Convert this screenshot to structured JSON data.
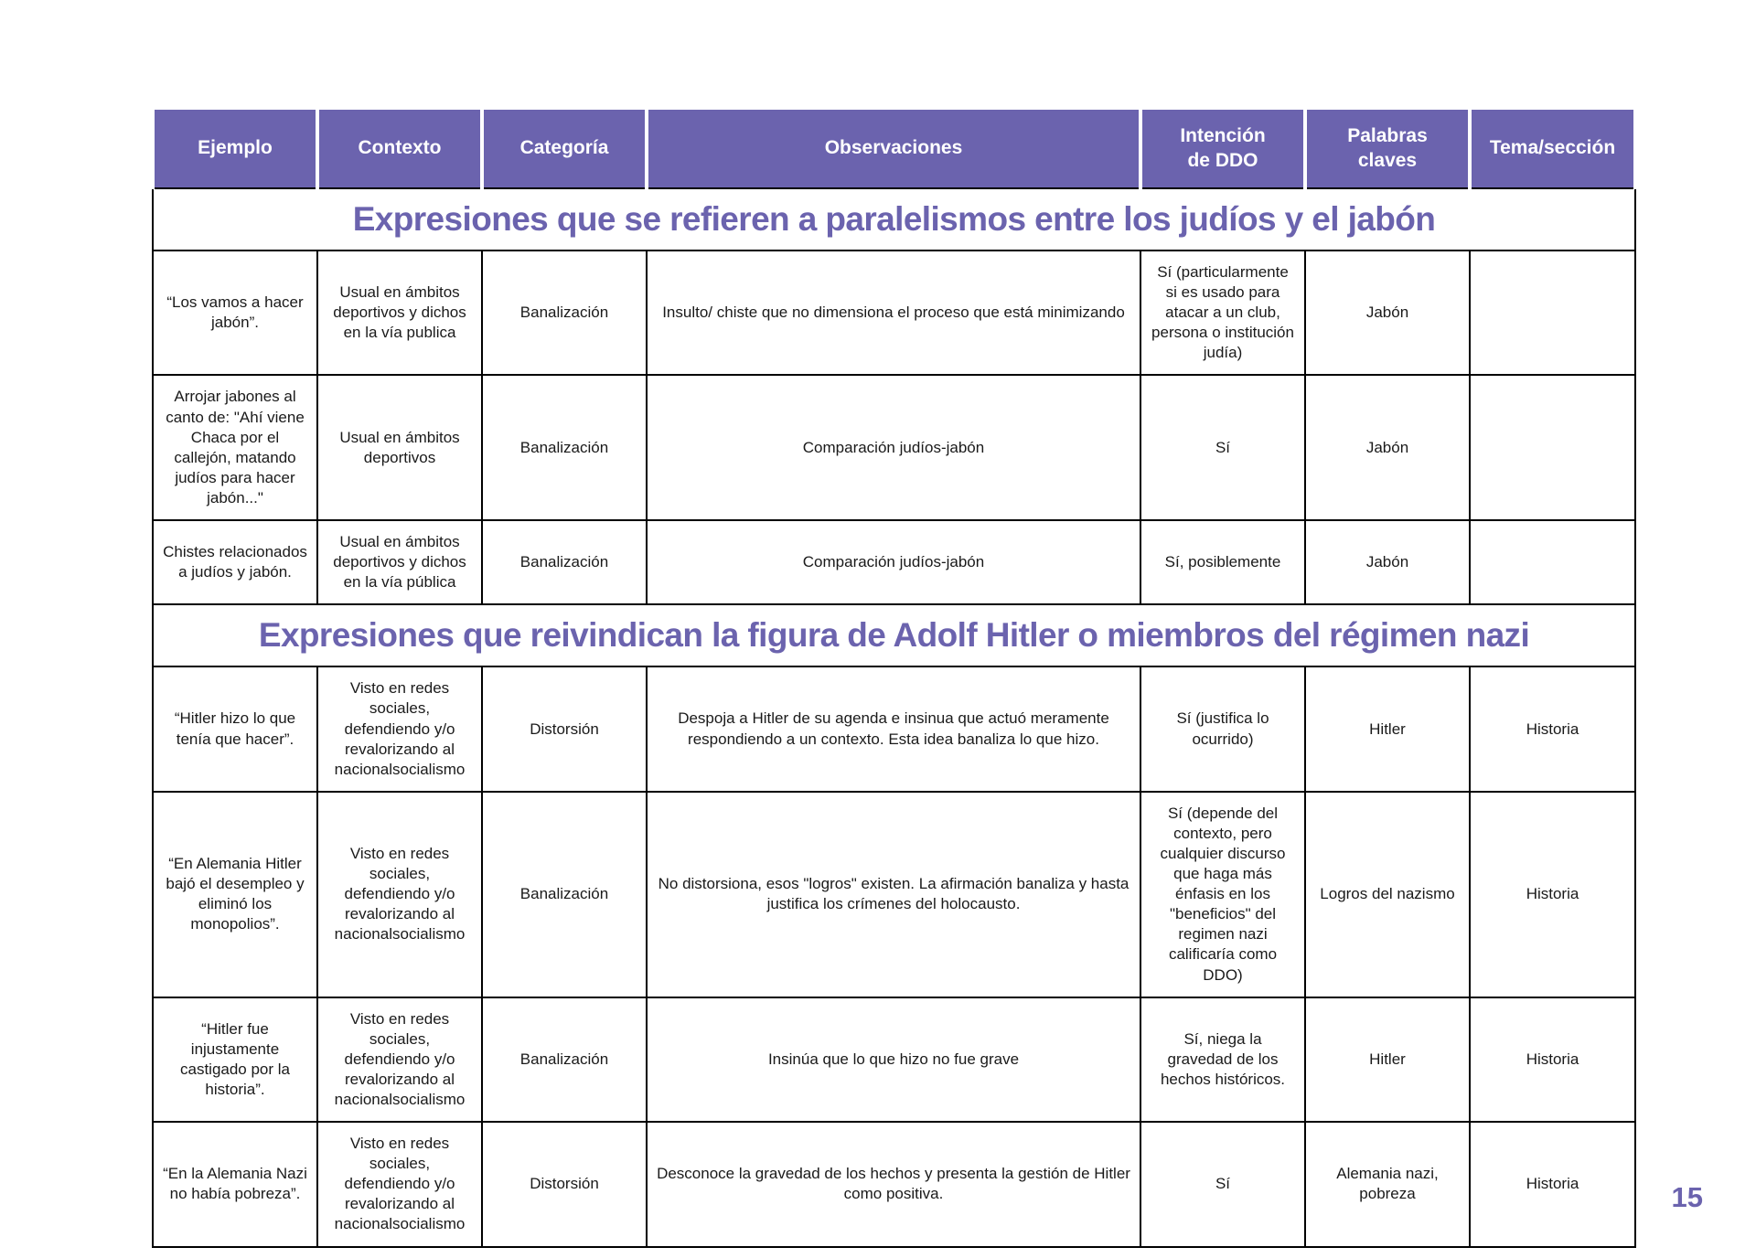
{
  "colors": {
    "accent": "#6b63ae",
    "border": "#000000",
    "header_text": "#ffffff"
  },
  "page_number": "15",
  "table": {
    "headers": [
      "Ejemplo",
      "Contexto",
      "Categoría",
      "Observaciones",
      "Intención\nde DDO",
      "Palabras\nclaves",
      "Tema/sección"
    ],
    "sections": [
      {
        "title": "Expresiones que se refieren a paralelismos entre los judíos y el jabón",
        "rows": [
          [
            "“Los vamos a hacer jabón”.",
            "Usual en ámbitos deportivos y dichos en la vía publica",
            "Banalización",
            "Insulto/ chiste que no dimensiona el proceso que está minimizando",
            "Sí (particularmente si es usado para atacar a un club, persona o institución judía)",
            "Jabón",
            ""
          ],
          [
            "Arrojar jabones al canto de: \"Ahí viene Chaca por el callejón, matando judíos para hacer jabón...\"",
            "Usual en ámbitos deportivos",
            "Banalización",
            "Comparación judíos-jabón",
            "Sí",
            "Jabón",
            ""
          ],
          [
            "Chistes relacionados a judíos y jabón.",
            "Usual en ámbitos deportivos y dichos en la vía pública",
            "Banalización",
            "Comparación judíos-jabón",
            "Sí, posiblemente",
            "Jabón",
            ""
          ]
        ]
      },
      {
        "title": "Expresiones que reivindican la figura de Adolf Hitler o miembros del régimen nazi",
        "rows": [
          [
            "“Hitler hizo lo que tenía que hacer”.",
            "Visto en redes sociales, defendiendo y/o revalorizando al nacionalsocialismo",
            "Distorsión",
            "Despoja a Hitler de su agenda e insinua que actuó meramente respondiendo a un contexto. Esta idea banaliza lo que hizo.",
            "Sí (justifica lo ocurrido)",
            "Hitler",
            "Historia"
          ],
          [
            "“En Alemania Hitler bajó el desempleo y eliminó los monopolios”.",
            "Visto en redes sociales, defendiendo y/o revalorizando al nacionalsocialismo",
            "Banalización",
            "No distorsiona, esos \"logros\" existen. La afirmación banaliza y hasta justifica los crímenes del holocausto.",
            "Sí (depende del contexto, pero cualquier discurso que haga más énfasis en los \"beneficios\" del regimen nazi calificaría como DDO)",
            "Logros del nazismo",
            "Historia"
          ],
          [
            "“Hitler fue injustamente castigado por la historia”.",
            "Visto en redes sociales, defendiendo y/o revalorizando al nacionalsocialismo",
            "Banalización",
            "Insinúa que lo que hizo no fue grave",
            "Sí, niega la gravedad de los hechos históricos.",
            "Hitler",
            "Historia"
          ],
          [
            "“En la Alemania Nazi no había pobreza”.",
            "Visto en redes sociales, defendiendo y/o revalorizando al nacionalsocialismo",
            "Distorsión",
            "Desconoce la gravedad de los hechos y presenta la gestión de Hitler como positiva.",
            "Sí",
            "Alemania nazi, pobreza",
            "Historia"
          ]
        ]
      }
    ]
  }
}
